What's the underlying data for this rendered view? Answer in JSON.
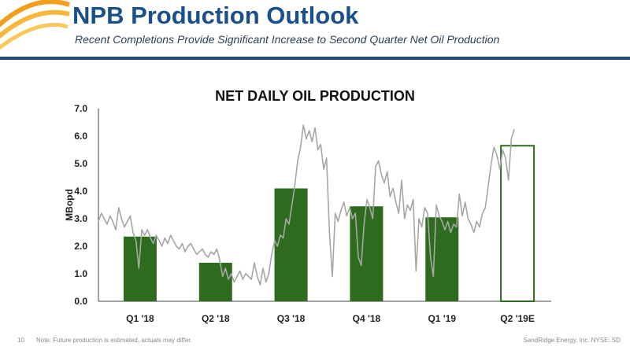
{
  "header": {
    "title": "NPB Production Outlook",
    "subtitle": "Recent Completions Provide Significant Increase to Second Quarter Net Oil Production",
    "logo": "sandridge-arc-logo"
  },
  "footer": {
    "page_number": "10",
    "note": "Note: Future production is estimated, actuals may differ.",
    "company": "SandRidge Energy, Inc. NYSE: SD"
  },
  "colors": {
    "brand_blue": "#1b4f8a",
    "bar_green": "#2e6b1e",
    "line_gray": "#a6a6a6",
    "logo_orange": "#f2a01c"
  },
  "chart_data": {
    "type": "bar",
    "title": "NET DAILY OIL PRODUCTION",
    "xlabel": "",
    "ylabel": "MBopd",
    "ylim": [
      0,
      7
    ],
    "yticks": [
      "0.0",
      "1.0",
      "2.0",
      "3.0",
      "4.0",
      "5.0",
      "6.0",
      "7.0"
    ],
    "categories": [
      "Q1 '18",
      "Q2 '18",
      "Q3 '18",
      "Q4 '18",
      "Q1 '19",
      "Q2 '19E"
    ],
    "values": [
      2.35,
      1.4,
      4.1,
      3.45,
      3.05,
      5.65
    ],
    "estimated": [
      false,
      false,
      false,
      false,
      false,
      true
    ],
    "grid": false,
    "daily_production": [
      2.9,
      3.2,
      3.0,
      2.8,
      3.1,
      2.9,
      2.6,
      3.4,
      3.0,
      2.7,
      2.9,
      3.1,
      2.5,
      2.2,
      1.2,
      2.6,
      2.4,
      2.6,
      2.3,
      2.1,
      2.4,
      2.2,
      2.0,
      2.3,
      2.1,
      2.4,
      2.2,
      2.0,
      1.9,
      2.1,
      1.8,
      2.0,
      2.1,
      1.9,
      1.7,
      1.8,
      1.9,
      1.7,
      1.6,
      1.8,
      1.7,
      1.9,
      1.5,
      0.9,
      1.2,
      0.8,
      1.0,
      0.7,
      0.9,
      1.1,
      0.8,
      1.0,
      0.9,
      0.8,
      1.4,
      0.9,
      0.6,
      1.2,
      0.7,
      1.0,
      1.7,
      2.2,
      2.0,
      2.4,
      2.3,
      3.0,
      2.8,
      3.5,
      4.2,
      5.1,
      5.6,
      6.4,
      5.9,
      6.2,
      5.8,
      6.3,
      5.5,
      5.7,
      4.8,
      5.2,
      2.5,
      0.9,
      3.2,
      2.9,
      3.3,
      3.6,
      3.1,
      3.4,
      3.0,
      3.2,
      1.6,
      1.3,
      2.8,
      3.7,
      3.4,
      3.0,
      4.9,
      5.1,
      4.6,
      4.3,
      4.7,
      3.8,
      4.1,
      3.6,
      3.2,
      4.4,
      3.0,
      3.5,
      3.3,
      3.7,
      1.1,
      3.0,
      2.7,
      3.4,
      3.2,
      1.6,
      0.9,
      3.5,
      3.1,
      2.9,
      2.6,
      2.9,
      2.5,
      2.8,
      2.7,
      3.9,
      3.1,
      3.6,
      3.0,
      2.8,
      2.5,
      2.9,
      2.7,
      3.2,
      3.4,
      4.2,
      5.0,
      5.6,
      5.3,
      4.8,
      5.5,
      5.2,
      4.4,
      5.9,
      6.25
    ]
  }
}
